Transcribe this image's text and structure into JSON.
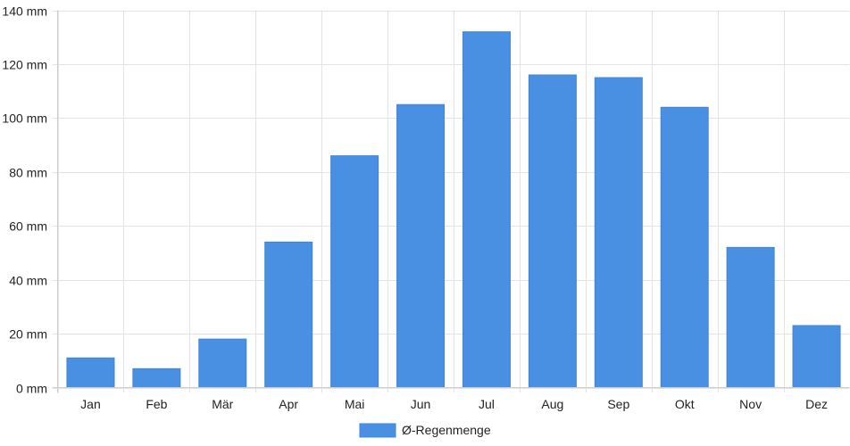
{
  "chart_data": {
    "type": "bar",
    "categories": [
      "Jan",
      "Feb",
      "Mär",
      "Apr",
      "Mai",
      "Jun",
      "Jul",
      "Aug",
      "Sep",
      "Okt",
      "Nov",
      "Dez"
    ],
    "series": [
      {
        "name": "Ø-Regenmenge",
        "values": [
          11,
          7,
          18,
          54,
          86,
          105,
          132,
          116,
          115,
          104,
          52,
          23
        ],
        "color": "#4a90e2"
      }
    ],
    "y_ticks": [
      "0 mm",
      "20 mm",
      "40 mm",
      "60 mm",
      "80 mm",
      "100 mm",
      "120 mm",
      "140 mm"
    ],
    "ylim": [
      0,
      140
    ],
    "y_step": 20,
    "grid": true,
    "legend_position": "bottom"
  }
}
